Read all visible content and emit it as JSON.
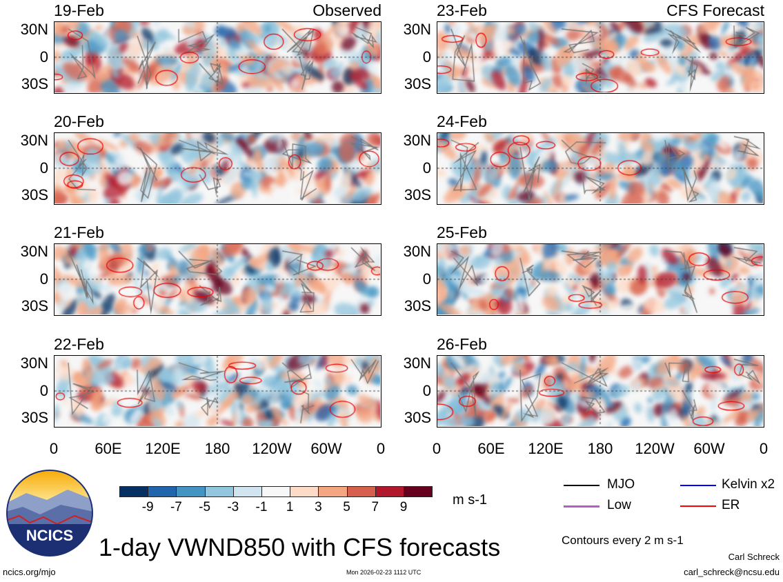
{
  "columns": [
    {
      "tag": "Observed",
      "dates": [
        "19-Feb",
        "20-Feb",
        "21-Feb",
        "22-Feb"
      ]
    },
    {
      "tag": "CFS Forecast",
      "dates": [
        "23-Feb",
        "24-Feb",
        "25-Feb",
        "26-Feb"
      ]
    }
  ],
  "lat_labels": [
    "30N",
    "0",
    "30S"
  ],
  "lon_labels": [
    "0",
    "60E",
    "120E",
    "180",
    "120W",
    "60W",
    "0"
  ],
  "colorbar": {
    "colors": [
      "#053061",
      "#2166ac",
      "#4393c3",
      "#92c5de",
      "#d1e5f0",
      "#f7f7f7",
      "#fddbc7",
      "#f4a582",
      "#d6604d",
      "#b2182b",
      "#67001f"
    ],
    "ticks": [
      "-9",
      "-7",
      "-5",
      "-3",
      "-1",
      "1",
      "3",
      "5",
      "7",
      "9"
    ],
    "units": "m s-1"
  },
  "legend": {
    "items": [
      {
        "label": "MJO",
        "color": "#000000"
      },
      {
        "label": "Kelvin x2",
        "color": "#0000ff"
      },
      {
        "label": "Low",
        "color": "#b060c0"
      },
      {
        "label": "ER",
        "color": "#ff0000"
      }
    ],
    "contour_note": "Contours every 2 m s-1"
  },
  "title": "1-day VWND850 with CFS forecasts",
  "logo_text": "NCICS",
  "footer": {
    "url": "ncics.org/mjo",
    "timestamp": "Mon 2026-02-23 1112 UTC",
    "author": "Carl Schreck",
    "email": "carl_schreck@ncsu.edu"
  }
}
